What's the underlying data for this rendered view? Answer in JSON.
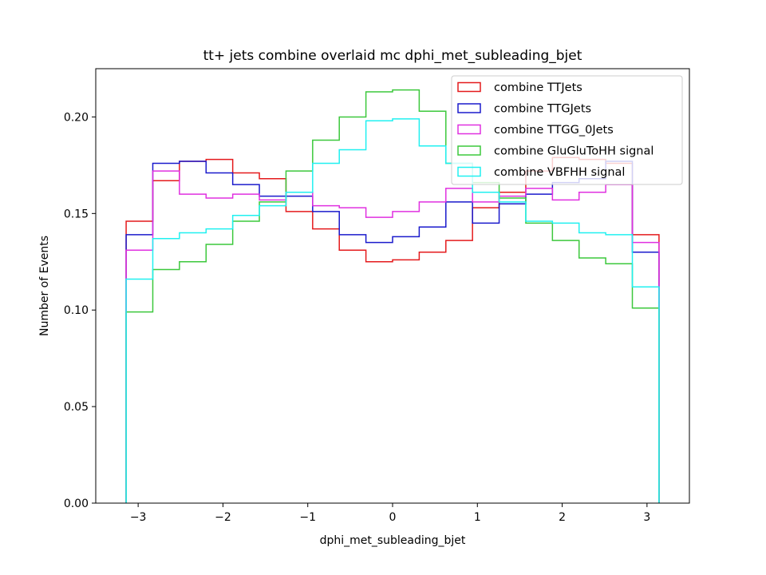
{
  "chart_data": {
    "type": "histogram-step",
    "title": "tt+ jets combine overlaid mc dphi_met_subleading_bjet",
    "xlabel": "dphi_met_subleading_bjet",
    "ylabel": "Number of Events",
    "xlim": [
      -3.5,
      3.5
    ],
    "ylim": [
      0,
      0.225
    ],
    "xticks": [
      -3,
      -2,
      -1,
      0,
      1,
      2,
      3
    ],
    "xtick_labels": [
      "−3",
      "−2",
      "−1",
      "0",
      "1",
      "2",
      "3"
    ],
    "yticks": [
      0.0,
      0.05,
      0.1,
      0.15,
      0.2
    ],
    "ytick_labels": [
      "0.00",
      "0.05",
      "0.10",
      "0.15",
      "0.20"
    ],
    "grid": false,
    "legend_position": "top-right",
    "bin_edges": [
      -3.1416,
      -2.8274,
      -2.5133,
      -2.1991,
      -1.885,
      -1.5708,
      -1.2566,
      -0.9425,
      -0.6283,
      -0.3142,
      0.0,
      0.3142,
      0.6283,
      0.9425,
      1.2566,
      1.5708,
      1.885,
      2.1991,
      2.5133,
      2.8274,
      3.1416
    ],
    "series": [
      {
        "name": "combine TTJets",
        "color": "#e41a1c",
        "values": [
          0.146,
          0.167,
          0.177,
          0.178,
          0.171,
          0.168,
          0.151,
          0.142,
          0.131,
          0.125,
          0.126,
          0.13,
          0.136,
          0.153,
          0.161,
          0.172,
          0.179,
          0.178,
          0.176,
          0.139
        ]
      },
      {
        "name": "combine TTGJets",
        "color": "#1a1acc",
        "values": [
          0.139,
          0.176,
          0.177,
          0.171,
          0.165,
          0.159,
          0.159,
          0.151,
          0.139,
          0.135,
          0.138,
          0.143,
          0.156,
          0.145,
          0.155,
          0.16,
          0.166,
          0.168,
          0.177,
          0.13
        ]
      },
      {
        "name": "combine TTGG_0Jets",
        "color": "#e030e0",
        "values": [
          0.131,
          0.172,
          0.16,
          0.158,
          0.16,
          0.157,
          0.161,
          0.154,
          0.153,
          0.148,
          0.151,
          0.156,
          0.163,
          0.156,
          0.159,
          0.163,
          0.157,
          0.161,
          0.165,
          0.135
        ]
      },
      {
        "name": "combine GluGluToHH signal",
        "color": "#3cc83c",
        "values": [
          0.099,
          0.121,
          0.125,
          0.134,
          0.146,
          0.156,
          0.172,
          0.188,
          0.2,
          0.213,
          0.214,
          0.203,
          0.176,
          0.166,
          0.158,
          0.145,
          0.136,
          0.127,
          0.124,
          0.101
        ]
      },
      {
        "name": "combine VBFHH signal",
        "color": "#20f0f0",
        "values": [
          0.116,
          0.137,
          0.14,
          0.142,
          0.149,
          0.154,
          0.161,
          0.176,
          0.183,
          0.198,
          0.199,
          0.185,
          0.176,
          0.161,
          0.156,
          0.146,
          0.145,
          0.14,
          0.139,
          0.112
        ]
      }
    ]
  }
}
